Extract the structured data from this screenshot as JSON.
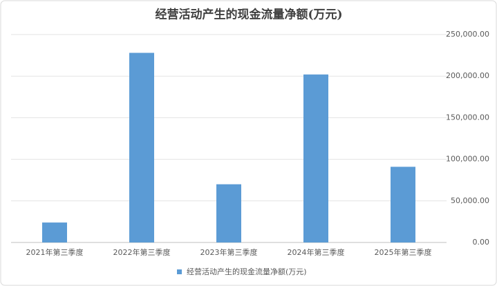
{
  "chart_data": {
    "type": "bar",
    "title": "经营活动产生的现金流量净额(万元)",
    "categories": [
      "2021年第三季度",
      "2022年第三季度",
      "2023年第三季度",
      "2024年第三季度",
      "2025年第三季度"
    ],
    "series": [
      {
        "name": "经营活动产生的现金流量净额(万元)",
        "color": "#5b9bd5",
        "values": [
          24000,
          228000,
          70000,
          202000,
          91000
        ]
      }
    ],
    "ylim": [
      0,
      250000
    ],
    "yticks": [
      {
        "value": 0,
        "label": "0.00"
      },
      {
        "value": 50000,
        "label": "50,000.00"
      },
      {
        "value": 100000,
        "label": "100,000.00"
      },
      {
        "value": 150000,
        "label": "150,000.00"
      },
      {
        "value": 200000,
        "label": "200,000.00"
      },
      {
        "value": 250000,
        "label": "250,000.00"
      }
    ],
    "grid": true,
    "legend": "bottom"
  }
}
